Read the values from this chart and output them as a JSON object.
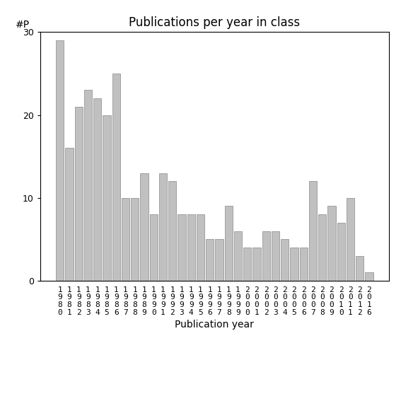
{
  "title": "Publications per year in class",
  "ylabel": "#P",
  "xlabel": "Publication year",
  "years": [
    "1980",
    "1981",
    "1982",
    "1983",
    "1984",
    "1985",
    "1986",
    "1987",
    "1988",
    "1989",
    "1990",
    "1991",
    "1992",
    "1993",
    "1994",
    "1995",
    "1996",
    "1997",
    "1998",
    "1999",
    "2000",
    "2001",
    "2002",
    "2003",
    "2004",
    "2005",
    "2006",
    "2007",
    "2008",
    "2009",
    "2010",
    "2011",
    "2012",
    "2016"
  ],
  "values": [
    29,
    16,
    21,
    23,
    22,
    20,
    25,
    10,
    10,
    13,
    8,
    13,
    12,
    8,
    8,
    8,
    5,
    5,
    9,
    6,
    4,
    4,
    6,
    6,
    5,
    4,
    4,
    12,
    8,
    9,
    7,
    10,
    3,
    1
  ],
  "bar_color": "#c0c0c0",
  "bar_edge_color": "#888888",
  "ylim": [
    0,
    30
  ],
  "yticks": [
    0,
    10,
    20,
    30
  ],
  "background_color": "#ffffff",
  "title_fontsize": 12,
  "label_fontsize": 10,
  "tick_fontsize": 9
}
